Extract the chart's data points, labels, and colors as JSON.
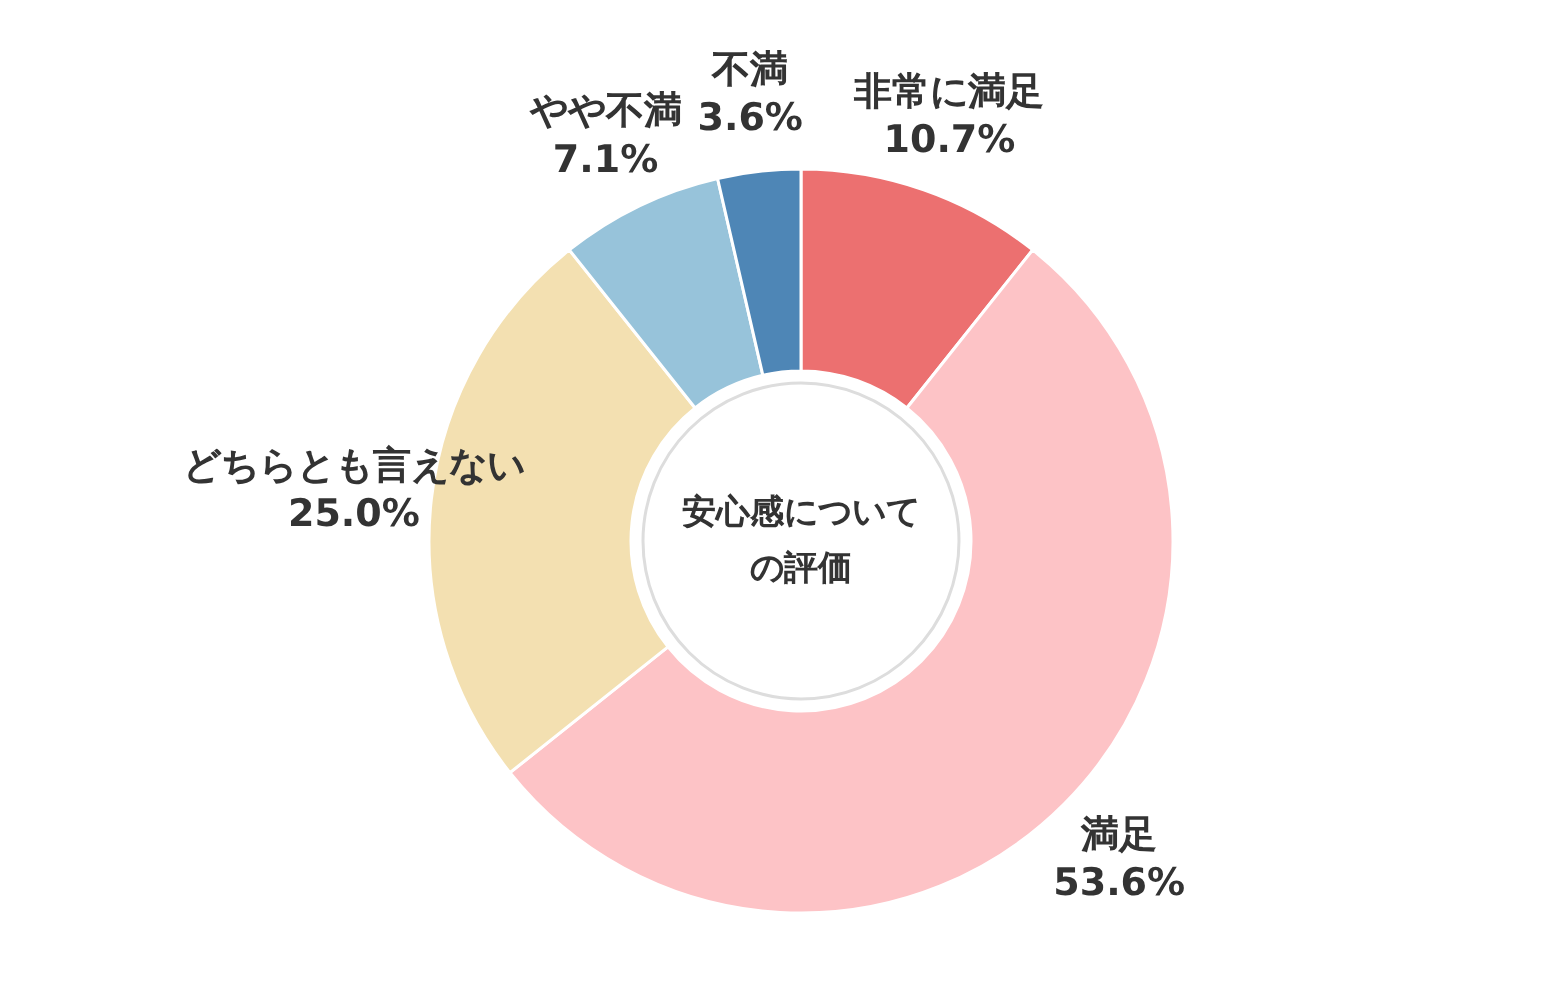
{
  "chart_data": {
    "type": "donut",
    "title": "安心感についての評価",
    "value_labels": [
      "10.7%",
      "53.6%",
      "25.0%",
      "7.1%",
      "3.6%"
    ],
    "categories": [
      "非常に満足",
      "満足",
      "どちらとも言えない",
      "やや不満",
      "不満"
    ],
    "values": [
      10.7,
      53.6,
      25.0,
      7.1,
      3.6
    ],
    "colors": [
      "#ec7070",
      "#fdc3c6",
      "#f3e0b1",
      "#97c3da",
      "#4e86b6"
    ]
  }
}
